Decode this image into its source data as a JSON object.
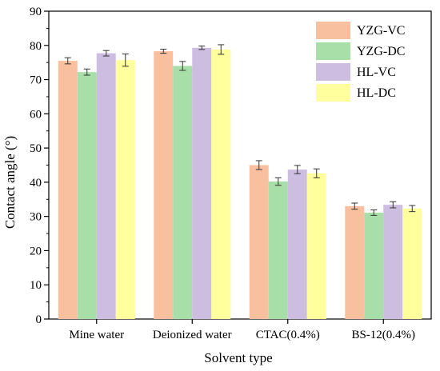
{
  "chart_data": {
    "type": "bar",
    "categories": [
      "Mine water",
      "Deionized water",
      "CTAC(0.4%)",
      "BS-12(0.4%)"
    ],
    "series": [
      {
        "name": "YZG-VC",
        "color": "#f9c09f",
        "values": [
          75.5,
          78.3,
          45.0,
          33.0
        ],
        "errors": [
          0.9,
          0.6,
          1.3,
          0.9
        ]
      },
      {
        "name": "YZG-DC",
        "color": "#a8dfa8",
        "values": [
          72.2,
          74.0,
          40.2,
          31.1
        ],
        "errors": [
          0.9,
          1.3,
          1.1,
          0.8
        ]
      },
      {
        "name": "HL-VC",
        "color": "#cdbde0",
        "values": [
          77.7,
          79.3,
          43.7,
          33.4
        ],
        "errors": [
          0.8,
          0.5,
          1.2,
          0.9
        ]
      },
      {
        "name": "HL-DC",
        "color": "#ffff9e",
        "values": [
          75.7,
          78.8,
          42.6,
          32.3
        ],
        "errors": [
          1.8,
          1.4,
          1.3,
          0.9
        ]
      }
    ],
    "xlabel": "Solvent type",
    "ylabel": "Contact angle  (°)",
    "ylim": [
      0,
      90
    ],
    "yticks": [
      0,
      10,
      20,
      30,
      40,
      50,
      60,
      70,
      80,
      90
    ],
    "grid": false,
    "legend_position": "top-right",
    "error_bars": true
  }
}
